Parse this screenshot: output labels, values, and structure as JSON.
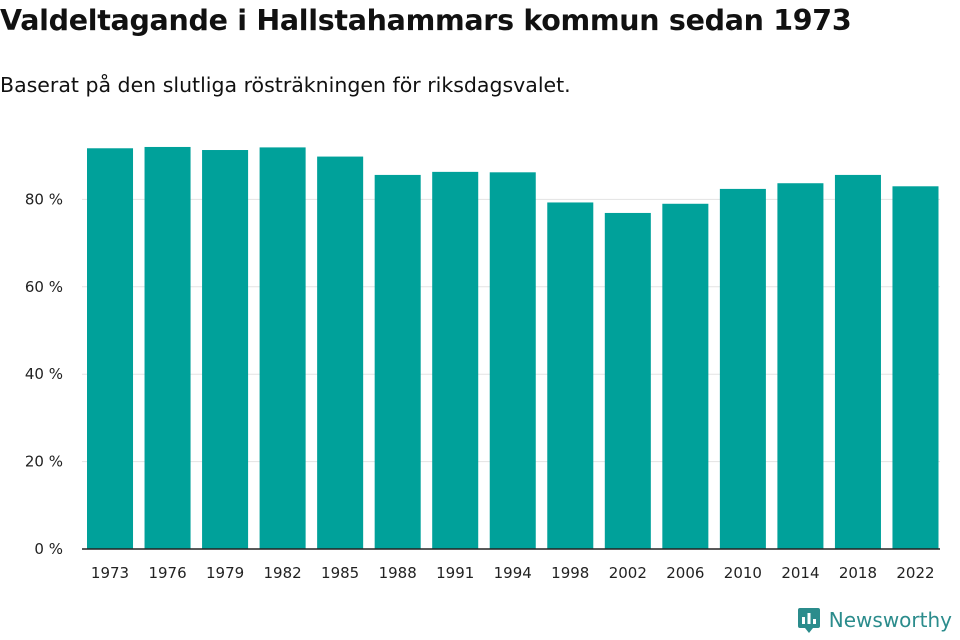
{
  "header": {
    "title": "Valdeltagande i Hallstahammars kommun sedan 1973",
    "subtitle": "Baserat på den slutliga rösträkningen för riksdagsvalet."
  },
  "brand": {
    "name": "Newsworthy",
    "icon": "newsworthy-logo-icon",
    "color": "#2b8c8c"
  },
  "colors": {
    "bar": "#00a19a",
    "grid": "#e3e3e3",
    "axis": "#222222"
  },
  "chart_data": {
    "type": "bar",
    "title": "Valdeltagande i Hallstahammars kommun sedan 1973",
    "subtitle": "Baserat på den slutliga rösträkningen för riksdagsvalet.",
    "xlabel": "",
    "ylabel": "",
    "ylim": [
      0,
      100
    ],
    "yticks": [
      0,
      20,
      40,
      60,
      80
    ],
    "ytick_labels": [
      "0 %",
      "20 %",
      "40 %",
      "60 %",
      "80 %"
    ],
    "grid": true,
    "categories": [
      "1973",
      "1976",
      "1979",
      "1982",
      "1985",
      "1988",
      "1991",
      "1994",
      "1998",
      "2002",
      "2006",
      "2010",
      "2014",
      "2018",
      "2022"
    ],
    "values": [
      91.7,
      92.0,
      91.3,
      91.9,
      89.8,
      85.6,
      86.3,
      86.2,
      79.3,
      76.9,
      79.0,
      82.4,
      83.7,
      85.6,
      83.0
    ]
  }
}
